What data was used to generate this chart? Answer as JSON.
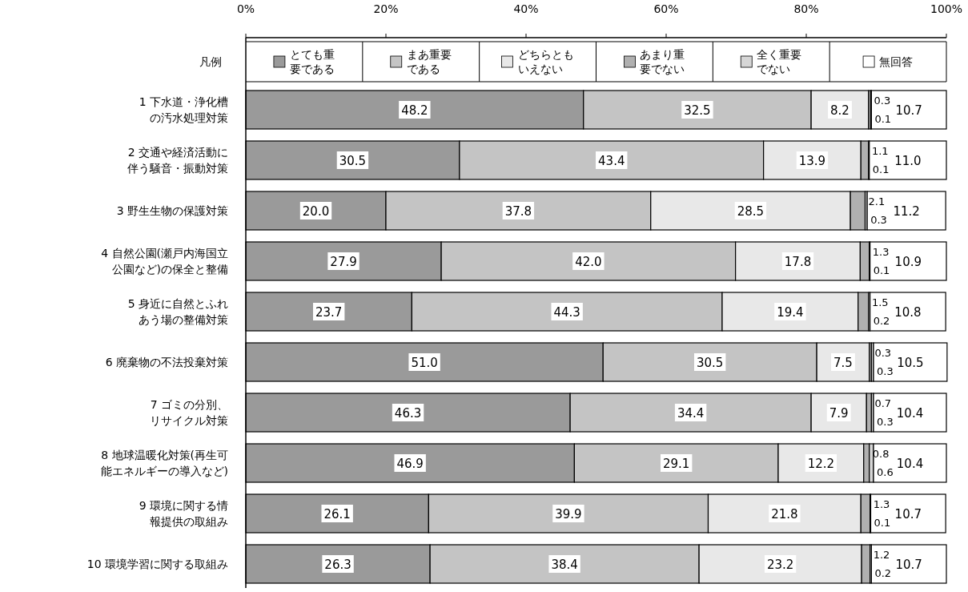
{
  "chart_data": {
    "type": "bar",
    "orientation": "horizontal",
    "stacked": true,
    "legend": "top",
    "legend_title": "凡例",
    "categories": [
      "1 下水道・浄化槽の汚水処理対策",
      "2 交通や経済活動に伴う騒音・振動対策",
      "3 野生生物の保護対策",
      "4 自然公園(瀬戸内海国立公園など)の保全と整備",
      "5 身近に自然とふれあう場の整備対策",
      "6 廃棄物の不法投棄対策",
      "7 ゴミの分別、リサイクル対策",
      "8 地球温暖化対策(再生可能エネルギーの導入など)",
      "9 環境に関する情報提供の取組み",
      "10 環境学習に関する取組み"
    ],
    "xlim": [
      0,
      100
    ],
    "xticks": [
      {
        "value": 0,
        "label": "0%"
      },
      {
        "value": 20,
        "label": "20%"
      },
      {
        "value": 40,
        "label": "40%"
      },
      {
        "value": 60,
        "label": "60%"
      },
      {
        "value": 80,
        "label": "80%"
      },
      {
        "value": 100,
        "label": "100%"
      }
    ],
    "series": [
      {
        "name": "とても重要である",
        "color": "#9a9a9a",
        "values": [
          48.2,
          30.5,
          20.0,
          27.9,
          23.7,
          51.0,
          46.3,
          46.9,
          26.1,
          26.3
        ],
        "value_labels": [
          "48.2",
          "30.5",
          "20.0",
          "27.9",
          "23.7",
          "51.0",
          "46.3",
          "46.9",
          "26.1",
          "26.3"
        ]
      },
      {
        "name": "まあ重要である",
        "color": "#c4c4c4",
        "values": [
          32.5,
          43.4,
          37.8,
          42.0,
          44.3,
          30.5,
          34.4,
          29.1,
          39.9,
          38.4
        ],
        "value_labels": [
          "32.5",
          "43.4",
          "37.8",
          "42.0",
          "44.3",
          "30.5",
          "34.4",
          "29.1",
          "39.9",
          "38.4"
        ]
      },
      {
        "name": "どちらともいえない",
        "color": "#e8e8e8",
        "values": [
          8.2,
          13.9,
          28.5,
          17.8,
          19.4,
          7.5,
          7.9,
          12.2,
          21.8,
          23.2
        ],
        "value_labels": [
          "8.2",
          "13.9",
          "28.5",
          "17.8",
          "19.4",
          "7.5",
          "7.9",
          "12.2",
          "21.8",
          "23.2"
        ]
      },
      {
        "name": "あまり重要でない",
        "color": "#b0b0b0",
        "values": [
          0.3,
          1.1,
          2.1,
          1.3,
          1.5,
          0.3,
          0.7,
          0.8,
          1.3,
          1.2
        ],
        "value_labels": [
          "0.3",
          "1.1",
          "2.1",
          "1.3",
          "1.5",
          "0.3",
          "0.7",
          "0.8",
          "1.3",
          "1.2"
        ]
      },
      {
        "name": "全く重要でない",
        "color": "#d6d6d6",
        "values": [
          0.1,
          0.1,
          0.3,
          0.1,
          0.2,
          0.3,
          0.3,
          0.6,
          0.1,
          0.2
        ],
        "value_labels": [
          "0.1",
          "0.1",
          "0.3",
          "0.1",
          "0.2",
          "0.3",
          "0.3",
          "0.6",
          "0.1",
          "0.2"
        ]
      },
      {
        "name": "無回答",
        "color": "#ffffff",
        "values": [
          10.7,
          11.0,
          11.2,
          10.9,
          10.8,
          10.5,
          10.4,
          10.4,
          10.7,
          10.7
        ],
        "value_labels": [
          "10.7",
          "11.0",
          "11.2",
          "10.9",
          "10.8",
          "10.5",
          "10.4",
          "10.4",
          "10.7",
          "10.7"
        ]
      }
    ]
  }
}
